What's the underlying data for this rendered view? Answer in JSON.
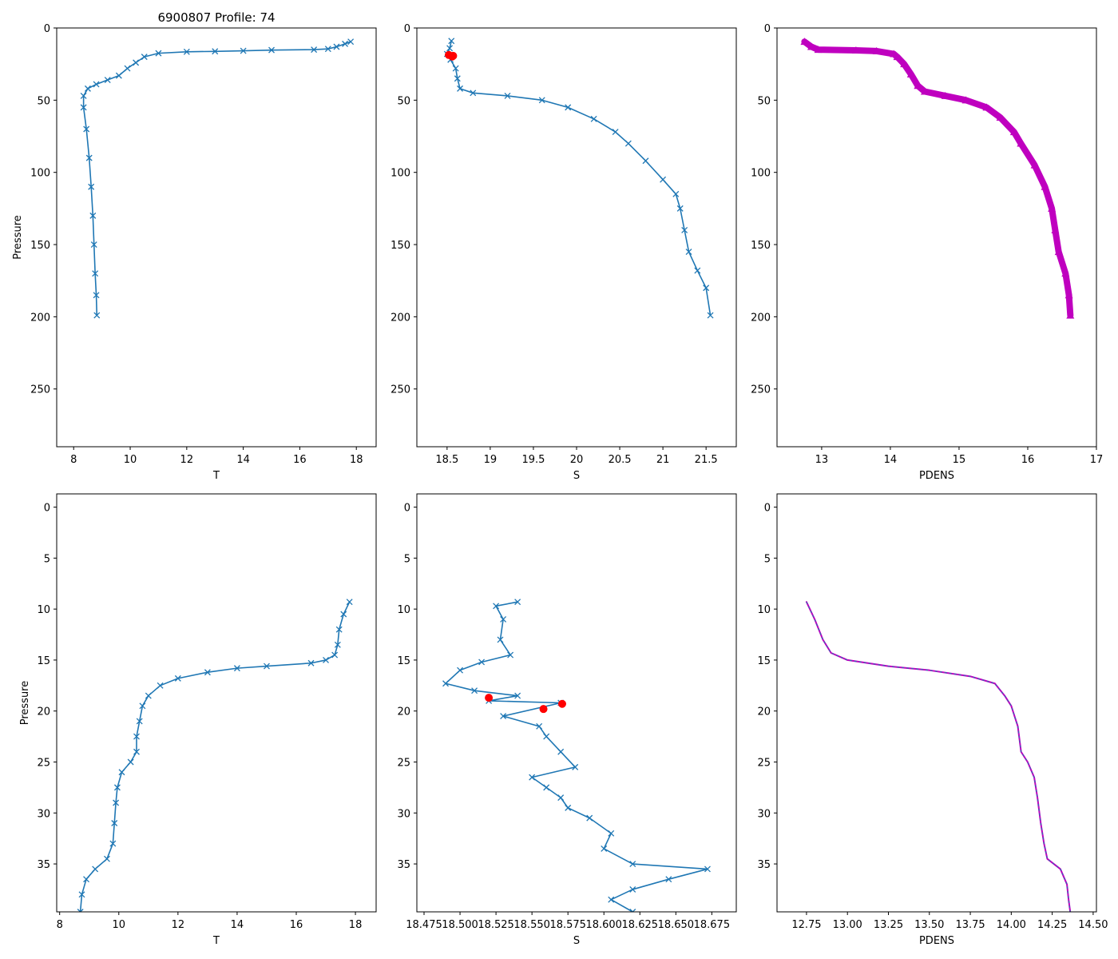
{
  "figure": {
    "title": "6900807 Profile: 74"
  },
  "colors": {
    "line": "#1f77b4",
    "flag": "#ff0000",
    "density": "#bf00bf",
    "axis": "#000000"
  },
  "chart_data": [
    {
      "id": "top-temperature",
      "type": "line",
      "marker": "x",
      "title": "6900807 Profile: 74",
      "xlabel": "T",
      "ylabel": "Pressure",
      "xlim": [
        7.4,
        18.7
      ],
      "ylim": [
        290,
        0
      ],
      "xticks": [
        8,
        10,
        12,
        14,
        16,
        18
      ],
      "yticks": [
        0,
        50,
        100,
        150,
        200,
        250
      ],
      "series": [
        {
          "name": "T",
          "points": [
            [
              17.8,
              9.5
            ],
            [
              17.6,
              11
            ],
            [
              17.3,
              13
            ],
            [
              17.0,
              14.5
            ],
            [
              16.5,
              15
            ],
            [
              15.0,
              15.3
            ],
            [
              14.0,
              15.8
            ],
            [
              13.0,
              16.2
            ],
            [
              12.0,
              16.5
            ],
            [
              11.0,
              17.5
            ],
            [
              10.5,
              20
            ],
            [
              10.2,
              24
            ],
            [
              9.9,
              28
            ],
            [
              9.6,
              33
            ],
            [
              9.2,
              36
            ],
            [
              8.8,
              39
            ],
            [
              8.5,
              42
            ],
            [
              8.35,
              47
            ],
            [
              8.35,
              55
            ],
            [
              8.45,
              70
            ],
            [
              8.55,
              90
            ],
            [
              8.62,
              110
            ],
            [
              8.68,
              130
            ],
            [
              8.72,
              150
            ],
            [
              8.76,
              170
            ],
            [
              8.8,
              185
            ],
            [
              8.82,
              199
            ]
          ]
        }
      ]
    },
    {
      "id": "top-salinity",
      "type": "line",
      "marker": "x",
      "xlabel": "S",
      "ylabel": "",
      "xlim": [
        18.15,
        21.85
      ],
      "ylim": [
        290,
        0
      ],
      "xticks": [
        18.5,
        19.0,
        19.5,
        20.0,
        20.5,
        21.0,
        21.5
      ],
      "yticks": [
        0,
        50,
        100,
        150,
        200,
        250
      ],
      "series": [
        {
          "name": "S",
          "points": [
            [
              18.55,
              9
            ],
            [
              18.53,
              14
            ],
            [
              18.5,
              18
            ],
            [
              18.54,
              22
            ],
            [
              18.6,
              28
            ],
            [
              18.62,
              35
            ],
            [
              18.65,
              42
            ],
            [
              18.8,
              45
            ],
            [
              19.2,
              47
            ],
            [
              19.6,
              50
            ],
            [
              19.9,
              55
            ],
            [
              20.2,
              63
            ],
            [
              20.45,
              72
            ],
            [
              20.6,
              80
            ],
            [
              20.8,
              92
            ],
            [
              21.0,
              105
            ],
            [
              21.15,
              115
            ],
            [
              21.2,
              125
            ],
            [
              21.25,
              140
            ],
            [
              21.3,
              155
            ],
            [
              21.4,
              168
            ],
            [
              21.5,
              180
            ],
            [
              21.55,
              199
            ]
          ]
        },
        {
          "name": "flagged",
          "points": [
            [
              18.52,
              18.7
            ],
            [
              18.56,
              19.8
            ],
            [
              18.57,
              19.3
            ]
          ]
        }
      ]
    },
    {
      "id": "top-density",
      "type": "line",
      "marker": "^",
      "xlabel": "PDENS",
      "ylabel": "",
      "xlim": [
        12.35,
        17.0
      ],
      "ylim": [
        290,
        0
      ],
      "xticks": [
        13,
        14,
        15,
        16,
        17
      ],
      "yticks": [
        0,
        50,
        100,
        150,
        200,
        250
      ],
      "series": [
        {
          "name": "PDENS",
          "points": [
            [
              12.75,
              9.5
            ],
            [
              12.85,
              13
            ],
            [
              12.95,
              15
            ],
            [
              13.5,
              15.5
            ],
            [
              13.8,
              16
            ],
            [
              14.05,
              18
            ],
            [
              14.1,
              20
            ],
            [
              14.2,
              25
            ],
            [
              14.3,
              32
            ],
            [
              14.4,
              40
            ],
            [
              14.5,
              44
            ],
            [
              14.8,
              47
            ],
            [
              15.1,
              50
            ],
            [
              15.4,
              55
            ],
            [
              15.6,
              62
            ],
            [
              15.8,
              72
            ],
            [
              15.9,
              80
            ],
            [
              16.1,
              95
            ],
            [
              16.25,
              110
            ],
            [
              16.35,
              125
            ],
            [
              16.4,
              140
            ],
            [
              16.45,
              155
            ],
            [
              16.55,
              170
            ],
            [
              16.6,
              185
            ],
            [
              16.62,
              199
            ]
          ]
        }
      ]
    },
    {
      "id": "bottom-temperature",
      "type": "line",
      "marker": "x",
      "xlabel": "T",
      "ylabel": "Pressure",
      "xlim": [
        7.9,
        18.7
      ],
      "ylim": [
        39.7,
        -1.3
      ],
      "xticks": [
        8,
        10,
        12,
        14,
        16,
        18
      ],
      "yticks": [
        0,
        5,
        10,
        15,
        20,
        25,
        30,
        35
      ],
      "series": [
        {
          "name": "T",
          "points": [
            [
              17.8,
              9.3
            ],
            [
              17.6,
              10.5
            ],
            [
              17.45,
              12
            ],
            [
              17.4,
              13.5
            ],
            [
              17.3,
              14.5
            ],
            [
              17.0,
              15
            ],
            [
              16.5,
              15.3
            ],
            [
              15.0,
              15.6
            ],
            [
              14.0,
              15.8
            ],
            [
              13.0,
              16.2
            ],
            [
              12.0,
              16.8
            ],
            [
              11.4,
              17.5
            ],
            [
              11.0,
              18.5
            ],
            [
              10.8,
              19.5
            ],
            [
              10.7,
              21
            ],
            [
              10.6,
              22.5
            ],
            [
              10.6,
              24
            ],
            [
              10.4,
              25
            ],
            [
              10.1,
              26
            ],
            [
              9.95,
              27.5
            ],
            [
              9.9,
              29
            ],
            [
              9.85,
              31
            ],
            [
              9.8,
              33
            ],
            [
              9.6,
              34.5
            ],
            [
              9.2,
              35.5
            ],
            [
              8.9,
              36.5
            ],
            [
              8.75,
              38
            ],
            [
              8.7,
              39.7
            ]
          ]
        }
      ]
    },
    {
      "id": "bottom-salinity",
      "type": "line",
      "marker": "x",
      "xlabel": "S",
      "ylabel": "",
      "xlim": [
        18.47,
        18.692
      ],
      "ylim": [
        39.7,
        -1.3
      ],
      "xticks": [
        18.475,
        18.5,
        18.525,
        18.55,
        18.575,
        18.6,
        18.625,
        18.65,
        18.675
      ],
      "xticklabels": [
        "18.475",
        "18.500",
        "18.525",
        "18.550",
        "18.575",
        "18.600",
        "18.625",
        "18.650",
        "18.675"
      ],
      "yticks": [
        0,
        5,
        10,
        15,
        20,
        25,
        30,
        35
      ],
      "series": [
        {
          "name": "S",
          "points": [
            [
              18.54,
              9.3
            ],
            [
              18.525,
              9.7
            ],
            [
              18.53,
              11
            ],
            [
              18.528,
              13
            ],
            [
              18.535,
              14.5
            ],
            [
              18.515,
              15.2
            ],
            [
              18.5,
              16
            ],
            [
              18.49,
              17.3
            ],
            [
              18.51,
              18
            ],
            [
              18.54,
              18.5
            ],
            [
              18.52,
              19
            ],
            [
              18.57,
              19.2
            ],
            [
              18.53,
              20.5
            ],
            [
              18.555,
              21.5
            ],
            [
              18.56,
              22.5
            ],
            [
              18.57,
              24
            ],
            [
              18.58,
              25.5
            ],
            [
              18.55,
              26.5
            ],
            [
              18.56,
              27.5
            ],
            [
              18.57,
              28.5
            ],
            [
              18.575,
              29.5
            ],
            [
              18.59,
              30.5
            ],
            [
              18.605,
              32
            ],
            [
              18.6,
              33.5
            ],
            [
              18.62,
              35
            ],
            [
              18.672,
              35.5
            ],
            [
              18.645,
              36.5
            ],
            [
              18.62,
              37.5
            ],
            [
              18.605,
              38.5
            ],
            [
              18.62,
              39.7
            ]
          ]
        },
        {
          "name": "flagged",
          "points": [
            [
              18.52,
              18.7
            ],
            [
              18.558,
              19.8
            ],
            [
              18.571,
              19.3
            ]
          ]
        }
      ]
    },
    {
      "id": "bottom-density",
      "type": "line",
      "marker": "none",
      "xlabel": "PDENS",
      "ylabel": "",
      "xlim": [
        12.57,
        14.52
      ],
      "ylim": [
        39.7,
        -1.3
      ],
      "xticks": [
        12.75,
        13.0,
        13.25,
        13.5,
        13.75,
        14.0,
        14.25,
        14.5
      ],
      "xticklabels": [
        "12.75",
        "13.00",
        "13.25",
        "13.50",
        "13.75",
        "14.00",
        "14.25",
        "14.50"
      ],
      "yticks": [
        0,
        5,
        10,
        15,
        20,
        25,
        30,
        35
      ],
      "series": [
        {
          "name": "PDENS",
          "points": [
            [
              12.75,
              9.3
            ],
            [
              12.8,
              11
            ],
            [
              12.85,
              13
            ],
            [
              12.9,
              14.3
            ],
            [
              13.0,
              15
            ],
            [
              13.25,
              15.6
            ],
            [
              13.5,
              16
            ],
            [
              13.75,
              16.6
            ],
            [
              13.9,
              17.3
            ],
            [
              13.96,
              18.5
            ],
            [
              14.0,
              19.5
            ],
            [
              14.04,
              21.5
            ],
            [
              14.06,
              24
            ],
            [
              14.1,
              25
            ],
            [
              14.14,
              26.5
            ],
            [
              14.16,
              28.5
            ],
            [
              14.18,
              31
            ],
            [
              14.2,
              33
            ],
            [
              14.22,
              34.5
            ],
            [
              14.3,
              35.5
            ],
            [
              14.34,
              37
            ],
            [
              14.35,
              38.5
            ],
            [
              14.36,
              39.7
            ]
          ]
        }
      ]
    }
  ]
}
